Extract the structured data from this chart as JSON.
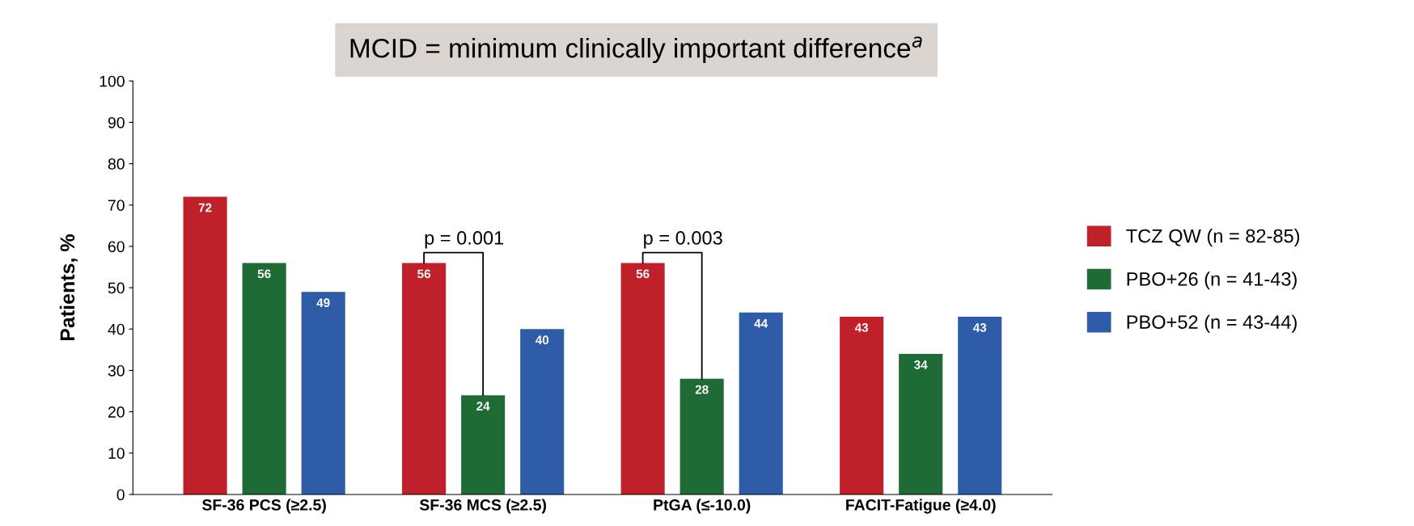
{
  "chart_data": {
    "type": "bar",
    "title": "MCID = minimum clinically important difference$^{a}$",
    "ylabel": "Patients, %",
    "categories": [
      "SF-36 PCS (≥2.5)",
      "SF-36 MCS (≥2.5)",
      "PtGA (≤-10.0)",
      "FACIT-Fatigue (≥4.0)"
    ],
    "series": [
      {
        "name": "TCZ QW (n = 82-85)",
        "color": "#c0202a",
        "values": [
          72,
          56,
          56,
          43
        ]
      },
      {
        "name": "PBO+26 (n = 41-43)",
        "color": "#1e6b35",
        "values": [
          56,
          24,
          28,
          34
        ]
      },
      {
        "name": "PBO+52 (n = 43-44)",
        "color": "#2e5ca8",
        "values": [
          49,
          40,
          44,
          43
        ]
      }
    ],
    "ylim": [
      0,
      100
    ],
    "yticks": [
      0,
      10,
      20,
      30,
      40,
      50,
      60,
      70,
      80,
      90,
      100
    ],
    "data_labels": true,
    "grid": false,
    "legend": "right",
    "annotations": [
      {
        "text": "p = 0.001",
        "x": "SF-36 MCS (≥2.5)",
        "y": 24
      },
      {
        "text": "p = 0.003",
        "x": "PtGA (≤-10.0)",
        "y": 28
      }
    ]
  }
}
